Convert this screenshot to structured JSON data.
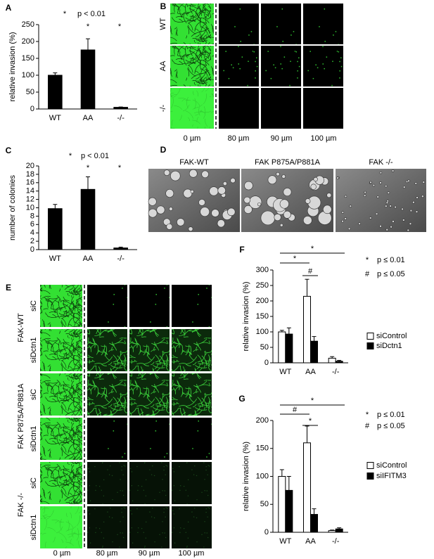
{
  "chart_data": [
    {
      "type": "bar",
      "panel": "A",
      "y_label": "relative invasion (%)",
      "categories": [
        "WT",
        "AA",
        "-/-"
      ],
      "values": [
        100,
        175,
        5
      ],
      "errors": [
        7,
        33,
        1
      ],
      "color": "#000000",
      "ylim": [
        0,
        250
      ],
      "yticks": [
        0,
        50,
        100,
        150,
        200,
        250
      ],
      "annotations": [
        "*",
        "p < 0.01",
        "*",
        "*"
      ]
    },
    {
      "type": "bar",
      "panel": "C",
      "y_label": "number of colonies",
      "categories": [
        "WT",
        "AA",
        "-/-"
      ],
      "values": [
        9.8,
        14.4,
        0.4
      ],
      "errors": [
        1,
        3,
        0.2
      ],
      "color": "#000000",
      "ylim": [
        0,
        20
      ],
      "yticks": [
        0,
        2,
        4,
        6,
        8,
        10,
        12,
        14,
        16,
        18,
        20
      ],
      "annotations": [
        "*",
        "p < 0.01",
        "*",
        "*"
      ]
    },
    {
      "type": "bar",
      "panel": "F",
      "y_label": "relative invasion (%)",
      "categories": [
        "WT",
        "AA",
        "-/-"
      ],
      "series": [
        {
          "name": "siControl",
          "color": "#ffffff",
          "values": [
            100,
            215,
            15
          ],
          "errors": [
            5,
            55,
            5
          ]
        },
        {
          "name": "siDctn1",
          "color": "#000000",
          "values": [
            93,
            70,
            5
          ],
          "errors": [
            20,
            15,
            3
          ]
        }
      ],
      "ylim": [
        0,
        300
      ],
      "yticks": [
        0,
        50,
        100,
        150,
        200,
        250,
        300
      ],
      "annotations": [
        "*",
        "*",
        "#"
      ],
      "key": [
        {
          "symbol": "*",
          "text": "p ≤ 0.01"
        },
        {
          "symbol": "#",
          "text": "p ≤ 0.05"
        }
      ]
    },
    {
      "type": "bar",
      "panel": "G",
      "y_label": "relative invasion (%)",
      "categories": [
        "WT",
        "AA",
        "-/-"
      ],
      "series": [
        {
          "name": "siControl",
          "color": "#ffffff",
          "values": [
            100,
            160,
            3
          ],
          "errors": [
            12,
            30,
            1
          ]
        },
        {
          "name": "siIFITM3",
          "color": "#000000",
          "values": [
            75,
            32,
            6
          ],
          "errors": [
            25,
            10,
            2
          ]
        }
      ],
      "ylim": [
        0,
        200
      ],
      "yticks": [
        0,
        50,
        100,
        150,
        200
      ],
      "annotations": [
        "*",
        "#",
        "*"
      ],
      "key": [
        {
          "symbol": "*",
          "text": "p ≤ 0.01"
        },
        {
          "symbol": "#",
          "text": "p ≤ 0.05"
        }
      ]
    }
  ],
  "panel_b": {
    "panel": "B",
    "rows": [
      "WT",
      "AA",
      "-/-"
    ],
    "columns": [
      "0 µm",
      "80 µm",
      "90 µm",
      "100 µm"
    ]
  },
  "panel_d": {
    "panel": "D",
    "columns": [
      "FAK-WT",
      "FAK P875A/P881A",
      "FAK -/-"
    ]
  },
  "panel_e": {
    "panel": "E",
    "groups": [
      "FAK-WT",
      "FAK P875A/P881A",
      "FAK -/-"
    ],
    "rows": [
      "siC",
      "siDctn1",
      "siC",
      "siDctn1",
      "siC",
      "siDctn1"
    ],
    "columns": [
      "0 µm",
      "80 µm",
      "90 µm",
      "100 µm"
    ]
  }
}
